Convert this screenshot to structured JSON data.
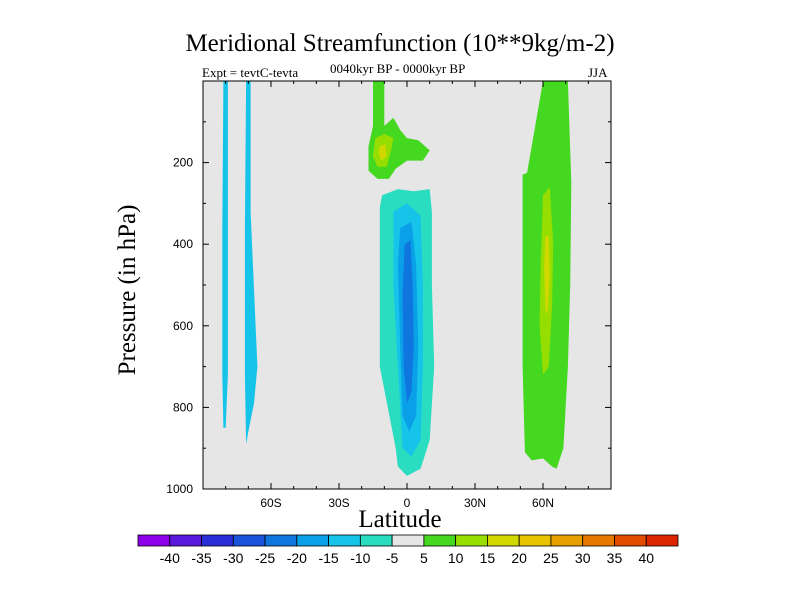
{
  "chart_data": {
    "type": "filled-contour",
    "title": "Meridional Streamfunction (10**9kg/m-2)",
    "subtitle": "0040kyr BP - 0000kyr BP",
    "left_label": "Expt = tevtC-tevta",
    "right_label": "JJA",
    "xlabel": "Latitude",
    "ylabel": "Pressure (in hPa)",
    "xlim": [
      -90,
      90
    ],
    "ylim": [
      1000,
      0
    ],
    "x_ticks": [
      {
        "value": -60,
        "label": "60S"
      },
      {
        "value": -30,
        "label": "30S"
      },
      {
        "value": 0,
        "label": "0"
      },
      {
        "value": 30,
        "label": "30N"
      },
      {
        "value": 60,
        "label": "60N"
      }
    ],
    "y_ticks": [
      {
        "value": 200,
        "label": "200"
      },
      {
        "value": 400,
        "label": "400"
      },
      {
        "value": 600,
        "label": "600"
      },
      {
        "value": 800,
        "label": "800"
      },
      {
        "value": 1000,
        "label": "1000"
      }
    ],
    "background_color": "#e6e6e6",
    "colorbar": {
      "labels": [
        "-40",
        "-35",
        "-30",
        "-25",
        "-20",
        "-15",
        "-10",
        "-5",
        "5",
        "10",
        "15",
        "20",
        "25",
        "30",
        "35",
        "40"
      ],
      "colors": [
        "#8f00ea",
        "#5a18dd",
        "#2a2ed9",
        "#1a52dc",
        "#0f76e0",
        "#0aa0e8",
        "#16c4ea",
        "#2adcc0",
        "#e6e6e6",
        "#44d820",
        "#96de00",
        "#d0d800",
        "#e8c400",
        "#e8a000",
        "#e67800",
        "#e24a00",
        "#dd2400"
      ]
    },
    "regions": [
      {
        "name": "streamfunction-region-sh-high-lat-1",
        "level": -10,
        "color": "#16c4ea",
        "points": [
          [
            -81,
            0
          ],
          [
            -79,
            0
          ],
          [
            -79,
            360
          ],
          [
            -79,
            720
          ],
          [
            -80,
            850
          ],
          [
            -81,
            850
          ],
          [
            -81.5,
            720
          ],
          [
            -81.5,
            360
          ]
        ]
      },
      {
        "name": "streamfunction-region-sh-high-lat-2",
        "level": -10,
        "color": "#16c4ea",
        "points": [
          [
            -71,
            0
          ],
          [
            -69,
            0
          ],
          [
            -69,
            320
          ],
          [
            -67.5,
            510
          ],
          [
            -66,
            700
          ],
          [
            -67.5,
            790
          ],
          [
            -70,
            860
          ],
          [
            -71,
            890
          ],
          [
            -71.5,
            720
          ],
          [
            -71.5,
            360
          ]
        ]
      },
      {
        "name": "streamfunction-region-upper-positive",
        "level": 5,
        "color": "#44d820",
        "points": [
          [
            -15,
            0
          ],
          [
            -10,
            0
          ],
          [
            -10,
            110
          ],
          [
            -6,
            90
          ],
          [
            -3,
            120
          ],
          [
            0,
            140
          ],
          [
            5,
            145
          ],
          [
            10,
            170
          ],
          [
            7,
            195
          ],
          [
            0,
            195
          ],
          [
            -5,
            215
          ],
          [
            -8,
            240
          ],
          [
            -13,
            240
          ],
          [
            -17,
            220
          ],
          [
            -17,
            160
          ],
          [
            -15,
            110
          ]
        ]
      },
      {
        "name": "streamfunction-region-upper-positive-core",
        "level": 10,
        "color": "#96de00",
        "points": [
          [
            -14,
            140
          ],
          [
            -10,
            130
          ],
          [
            -6,
            140
          ],
          [
            -7,
            170
          ],
          [
            -9,
            210
          ],
          [
            -13,
            210
          ],
          [
            -15,
            185
          ]
        ]
      },
      {
        "name": "streamfunction-region-upper-positive-max",
        "level": 15,
        "color": "#d0d800",
        "points": [
          [
            -12,
            160
          ],
          [
            -9.5,
            155
          ],
          [
            -9,
            185
          ],
          [
            -11.5,
            195
          ],
          [
            -12.5,
            178
          ]
        ]
      },
      {
        "name": "streamfunction-region-tropical-negative",
        "level": -5,
        "color": "#2adcc0",
        "points": [
          [
            -11,
            280
          ],
          [
            -4,
            265
          ],
          [
            3,
            270
          ],
          [
            10,
            265
          ],
          [
            11,
            320
          ],
          [
            11,
            500
          ],
          [
            12,
            700
          ],
          [
            10,
            880
          ],
          [
            6,
            950
          ],
          [
            0,
            968
          ],
          [
            -4,
            945
          ],
          [
            -5,
            900
          ],
          [
            -12,
            700
          ],
          [
            -12,
            500
          ],
          [
            -12,
            310
          ]
        ]
      },
      {
        "name": "streamfunction-region-tropical-negative-10",
        "level": -10,
        "color": "#16c4ea",
        "points": [
          [
            -6,
            320
          ],
          [
            0,
            300
          ],
          [
            6,
            330
          ],
          [
            7,
            500
          ],
          [
            7,
            700
          ],
          [
            6,
            880
          ],
          [
            2,
            920
          ],
          [
            -2,
            900
          ],
          [
            -4,
            700
          ],
          [
            -6,
            500
          ]
        ]
      },
      {
        "name": "streamfunction-region-tropical-negative-15",
        "level": -15,
        "color": "#0aa0e8",
        "points": [
          [
            -3,
            360
          ],
          [
            2,
            345
          ],
          [
            4,
            450
          ],
          [
            5,
            650
          ],
          [
            4,
            820
          ],
          [
            1,
            860
          ],
          [
            -2,
            820
          ],
          [
            -3,
            650
          ],
          [
            -4,
            450
          ]
        ]
      },
      {
        "name": "streamfunction-region-tropical-negative-20",
        "level": -20,
        "color": "#0f76e0",
        "points": [
          [
            -1,
            400
          ],
          [
            1.5,
            390
          ],
          [
            2.5,
            500
          ],
          [
            3,
            650
          ],
          [
            2,
            760
          ],
          [
            0,
            790
          ],
          [
            -1.5,
            700
          ],
          [
            -2,
            520
          ]
        ]
      },
      {
        "name": "streamfunction-region-nh-midlat-positive",
        "level": 5,
        "color": "#44d820",
        "points": [
          [
            51,
            230
          ],
          [
            53,
            225
          ],
          [
            60,
            0
          ],
          [
            71,
            0
          ],
          [
            72.5,
            250
          ],
          [
            72,
            500
          ],
          [
            71,
            700
          ],
          [
            69,
            900
          ],
          [
            66,
            950
          ],
          [
            64,
            945
          ],
          [
            60,
            925
          ],
          [
            55,
            930
          ],
          [
            52,
            910
          ],
          [
            51,
            700
          ],
          [
            51,
            500
          ]
        ]
      },
      {
        "name": "streamfunction-region-nh-midlat-core",
        "level": 10,
        "color": "#96de00",
        "points": [
          [
            60,
            280
          ],
          [
            63,
            260
          ],
          [
            64.5,
            400
          ],
          [
            64,
            550
          ],
          [
            62.5,
            700
          ],
          [
            60,
            720
          ],
          [
            58.5,
            600
          ],
          [
            59,
            450
          ]
        ]
      },
      {
        "name": "streamfunction-region-nh-midlat-max",
        "level": 15,
        "color": "#d0d800",
        "points": [
          [
            61,
            380
          ],
          [
            62.5,
            380
          ],
          [
            63,
            480
          ],
          [
            62,
            570
          ],
          [
            61,
            560
          ],
          [
            60.5,
            460
          ]
        ]
      }
    ]
  }
}
